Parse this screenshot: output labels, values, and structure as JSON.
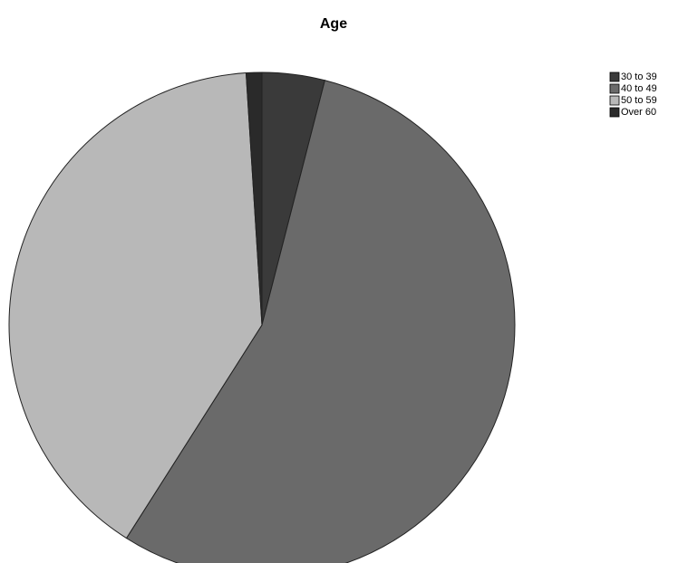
{
  "chart_data": {
    "type": "pie",
    "title": "Age",
    "categories": [
      "30 to 39",
      "40 to 49",
      "50 to 59",
      "Over 60"
    ],
    "values": [
      4,
      55,
      40,
      1
    ],
    "colors": [
      "#3a3a3a",
      "#6a6a6a",
      "#b8b8b8",
      "#2a2a2a"
    ],
    "legend": "right"
  }
}
